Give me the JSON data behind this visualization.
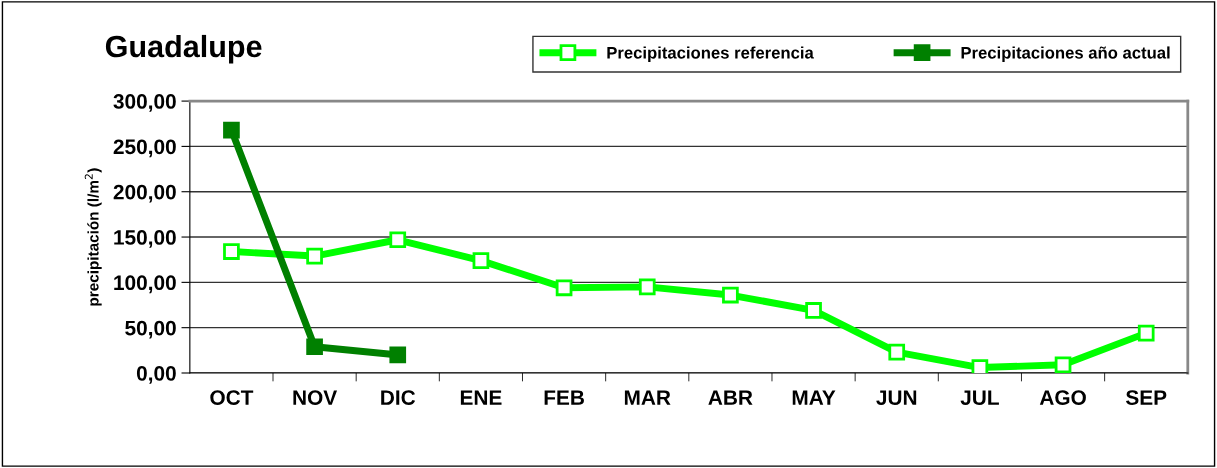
{
  "chart_data": {
    "type": "line",
    "title": "Guadalupe",
    "ylabel": "precipitación (l/m$^{2}$)",
    "categories": [
      "OCT",
      "NOV",
      "DIC",
      "ENE",
      "FEB",
      "MAR",
      "ABR",
      "MAY",
      "JUN",
      "JUL",
      "AGO",
      "SEP"
    ],
    "series": [
      {
        "name": "Precipitaciones referencia",
        "color": "#00ff00",
        "values": [
          134,
          129,
          147,
          124,
          94,
          95,
          86,
          69,
          23,
          6,
          9,
          44
        ]
      },
      {
        "name": "Precipitaciones año actual",
        "color": "#008000",
        "values": [
          268,
          29,
          20,
          null,
          null,
          null,
          null,
          null,
          null,
          null,
          null,
          null
        ]
      }
    ],
    "ylim": [
      0,
      300
    ],
    "yticks": [
      {
        "value": 0,
        "label": "0,00"
      },
      {
        "value": 50,
        "label": "50,00"
      },
      {
        "value": 100,
        "label": "100,00"
      },
      {
        "value": 150,
        "label": "150,00"
      },
      {
        "value": 200,
        "label": "200,00"
      },
      {
        "value": 250,
        "label": "250,00"
      },
      {
        "value": 300,
        "label": "300,00"
      }
    ],
    "grid": "y",
    "legend": "top right",
    "marker": "square",
    "line_style": "solid"
  }
}
